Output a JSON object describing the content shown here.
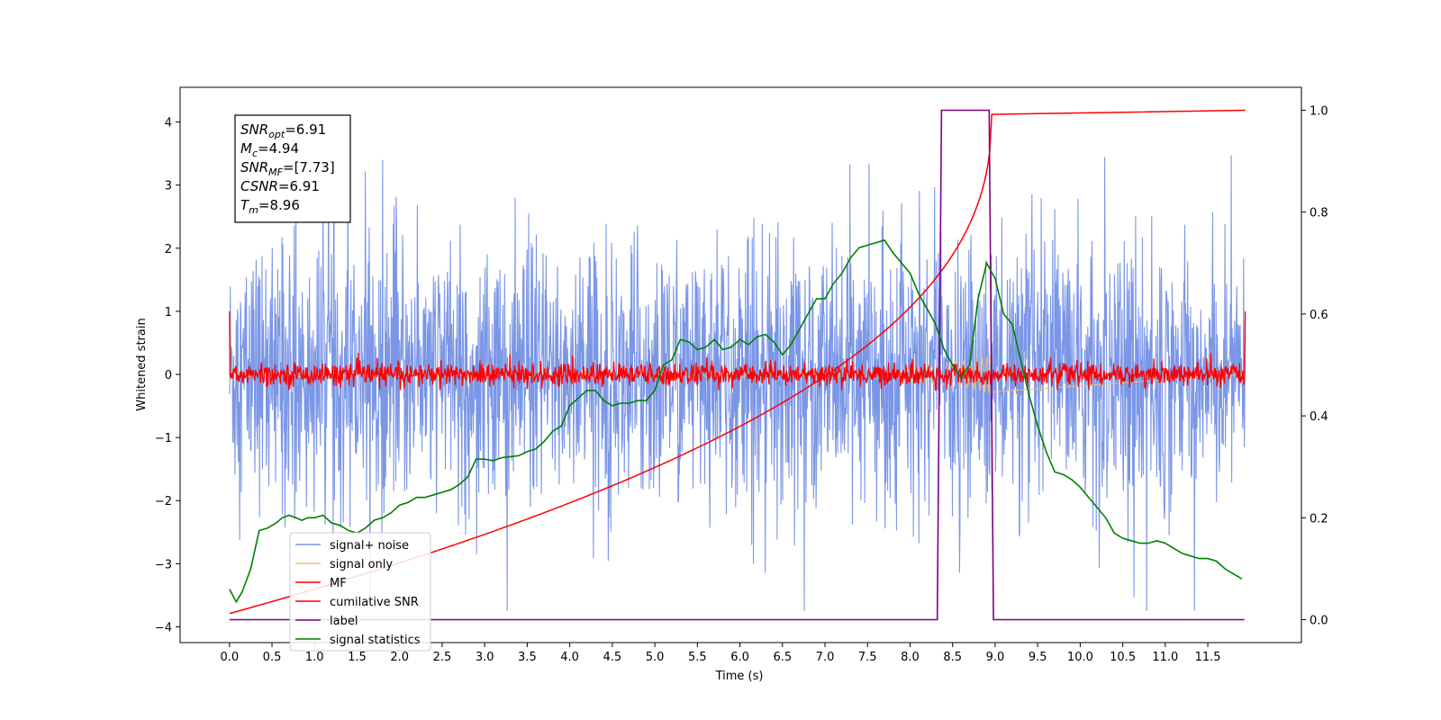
{
  "chart_data": {
    "type": "line",
    "xlabel": "Time (s)",
    "ylabel_left": "Whitened strain",
    "ylabel_right": "",
    "xlim": [
      -0.58,
      12.6
    ],
    "ylim_left": [
      -4.25,
      4.55
    ],
    "ylim_right": [
      -0.045,
      1.045
    ],
    "x_ticks": [
      0.0,
      0.5,
      1.0,
      1.5,
      2.0,
      2.5,
      3.0,
      3.5,
      4.0,
      4.5,
      5.0,
      5.5,
      6.0,
      6.5,
      7.0,
      7.5,
      8.0,
      8.5,
      9.0,
      9.5,
      10.0,
      10.5,
      11.0,
      11.5
    ],
    "x_tick_labels": [
      "0.0",
      "0.5",
      "1.0",
      "1.5",
      "2.0",
      "2.5",
      "3.0",
      "3.5",
      "4.0",
      "4.5",
      "5.0",
      "5.5",
      "6.0",
      "6.5",
      "7.0",
      "7.5",
      "8.0",
      "8.5",
      "9.0",
      "9.5",
      "10.0",
      "10.5",
      "11.0",
      "11.5"
    ],
    "y_ticks_left": [
      4,
      3,
      2,
      1,
      0,
      -1,
      -2,
      -3,
      -4
    ],
    "y_tick_labels_left": [
      "4",
      "3",
      "2",
      "1",
      "0",
      "−1",
      "−2",
      "−3",
      "−4"
    ],
    "y_ticks_right": [
      1.0,
      0.8,
      0.6,
      0.4,
      0.2,
      0.0
    ],
    "y_tick_labels_right": [
      "1.0",
      "0.8",
      "0.6",
      "0.4",
      "0.2",
      "0.0"
    ],
    "grid": false,
    "legend_position": "lower-left",
    "annotation": {
      "lines": [
        {
          "name": "SNR",
          "sub": "opt",
          "value": "=6.91"
        },
        {
          "name": "M",
          "sub": "c",
          "value": "=4.94"
        },
        {
          "name": "SNR",
          "sub": "MF",
          "value": "=[7.73]"
        },
        {
          "name": "CSNR",
          "sub": "",
          "value": "=6.91"
        },
        {
          "name": "T",
          "sub": "m",
          "value": "=8.96"
        }
      ]
    },
    "series": [
      {
        "name": "signal+ noise",
        "color": "#7b96e6",
        "axis": "left"
      },
      {
        "name": "signal only",
        "color": "#f5c26b",
        "axis": "left"
      },
      {
        "name": "MF",
        "color": "#ff0000",
        "axis": "left"
      },
      {
        "name": "cumilative SNR",
        "color": "#ff0000",
        "axis": "right"
      },
      {
        "name": "label",
        "color": "#800080",
        "axis": "right",
        "x": [
          0.0,
          8.32,
          8.37,
          8.93,
          8.98,
          11.93
        ],
        "y": [
          0.0,
          0.0,
          1.0,
          1.0,
          0.0,
          0.0
        ]
      },
      {
        "name": "signal statistics",
        "color": "#008000",
        "axis": "right",
        "x": [
          0.0,
          0.08,
          0.15,
          0.25,
          0.35,
          0.45,
          0.55,
          0.62,
          0.7,
          0.78,
          0.85,
          0.92,
          1.0,
          1.1,
          1.2,
          1.3,
          1.4,
          1.5,
          1.6,
          1.7,
          1.8,
          1.9,
          2.0,
          2.1,
          2.2,
          2.3,
          2.4,
          2.5,
          2.6,
          2.7,
          2.8,
          2.9,
          3.0,
          3.1,
          3.2,
          3.3,
          3.4,
          3.5,
          3.6,
          3.7,
          3.8,
          3.9,
          4.0,
          4.1,
          4.2,
          4.3,
          4.4,
          4.5,
          4.6,
          4.7,
          4.8,
          4.9,
          5.0,
          5.1,
          5.2,
          5.3,
          5.4,
          5.5,
          5.6,
          5.7,
          5.8,
          5.9,
          6.0,
          6.1,
          6.2,
          6.3,
          6.4,
          6.5,
          6.6,
          6.7,
          6.8,
          6.9,
          7.0,
          7.1,
          7.2,
          7.3,
          7.4,
          7.5,
          7.6,
          7.7,
          7.8,
          7.9,
          8.0,
          8.1,
          8.2,
          8.3,
          8.4,
          8.5,
          8.6,
          8.7,
          8.8,
          8.9,
          9.0,
          9.1,
          9.2,
          9.3,
          9.4,
          9.5,
          9.6,
          9.7,
          9.8,
          9.9,
          10.0,
          10.1,
          10.2,
          10.3,
          10.4,
          10.5,
          10.6,
          10.7,
          10.8,
          10.9,
          11.0,
          11.1,
          11.2,
          11.3,
          11.4,
          11.5,
          11.6,
          11.7,
          11.8,
          11.9
        ],
        "y": [
          0.06,
          0.035,
          0.055,
          0.1,
          0.175,
          0.18,
          0.19,
          0.2,
          0.205,
          0.2,
          0.195,
          0.2,
          0.2,
          0.205,
          0.19,
          0.185,
          0.175,
          0.17,
          0.18,
          0.195,
          0.2,
          0.21,
          0.225,
          0.23,
          0.24,
          0.24,
          0.245,
          0.25,
          0.255,
          0.265,
          0.28,
          0.315,
          0.315,
          0.312,
          0.318,
          0.32,
          0.322,
          0.33,
          0.335,
          0.35,
          0.37,
          0.38,
          0.42,
          0.435,
          0.45,
          0.45,
          0.43,
          0.42,
          0.425,
          0.425,
          0.43,
          0.43,
          0.45,
          0.5,
          0.51,
          0.55,
          0.545,
          0.53,
          0.535,
          0.55,
          0.53,
          0.535,
          0.55,
          0.54,
          0.555,
          0.56,
          0.545,
          0.52,
          0.54,
          0.57,
          0.6,
          0.63,
          0.63,
          0.66,
          0.68,
          0.71,
          0.73,
          0.735,
          0.74,
          0.745,
          0.72,
          0.7,
          0.68,
          0.64,
          0.61,
          0.58,
          0.53,
          0.5,
          0.475,
          0.5,
          0.63,
          0.7,
          0.67,
          0.6,
          0.58,
          0.51,
          0.44,
          0.38,
          0.33,
          0.29,
          0.285,
          0.275,
          0.26,
          0.24,
          0.22,
          0.2,
          0.17,
          0.16,
          0.155,
          0.15,
          0.15,
          0.155,
          0.15,
          0.14,
          0.13,
          0.125,
          0.12,
          0.12,
          0.115,
          0.1,
          0.09,
          0.08
        ]
      }
    ]
  }
}
